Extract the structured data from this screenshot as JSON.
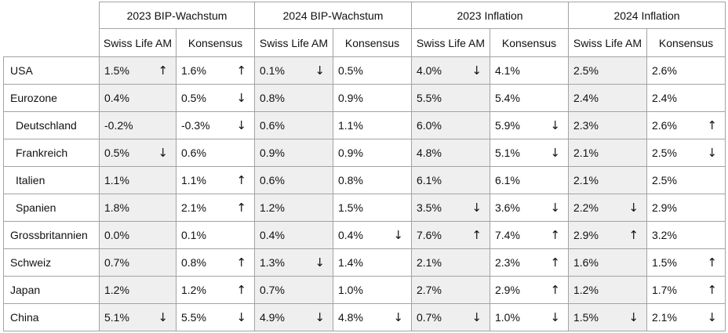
{
  "headers": {
    "groups": [
      "2023 BIP-Wachstum",
      "2024 BIP-Wachstum",
      "2023 Inflation",
      "2024 Inflation"
    ],
    "sub": [
      "Swiss Life AM",
      "Konsensus"
    ]
  },
  "rows": [
    {
      "label": "USA",
      "indent": false,
      "cells": [
        {
          "v": "1.5%",
          "a": "up"
        },
        {
          "v": "1.6%",
          "a": "up"
        },
        {
          "v": "0.1%",
          "a": "down"
        },
        {
          "v": "0.5%",
          "a": ""
        },
        {
          "v": "4.0%",
          "a": "down"
        },
        {
          "v": "4.1%",
          "a": ""
        },
        {
          "v": "2.5%",
          "a": ""
        },
        {
          "v": "2.6%",
          "a": ""
        }
      ]
    },
    {
      "label": "Eurozone",
      "indent": false,
      "cells": [
        {
          "v": "0.4%",
          "a": ""
        },
        {
          "v": "0.5%",
          "a": "down"
        },
        {
          "v": "0.8%",
          "a": ""
        },
        {
          "v": "0.9%",
          "a": ""
        },
        {
          "v": "5.5%",
          "a": ""
        },
        {
          "v": "5.4%",
          "a": ""
        },
        {
          "v": "2.4%",
          "a": ""
        },
        {
          "v": "2.4%",
          "a": ""
        }
      ]
    },
    {
      "label": "Deutschland",
      "indent": true,
      "cells": [
        {
          "v": "-0.2%",
          "a": ""
        },
        {
          "v": "-0.3%",
          "a": "down"
        },
        {
          "v": "0.6%",
          "a": ""
        },
        {
          "v": "1.1%",
          "a": ""
        },
        {
          "v": "6.0%",
          "a": ""
        },
        {
          "v": "5.9%",
          "a": "down"
        },
        {
          "v": "2.3%",
          "a": ""
        },
        {
          "v": "2.6%",
          "a": "up"
        }
      ]
    },
    {
      "label": "Frankreich",
      "indent": true,
      "cells": [
        {
          "v": "0.5%",
          "a": "down"
        },
        {
          "v": "0.6%",
          "a": ""
        },
        {
          "v": "0.9%",
          "a": ""
        },
        {
          "v": "0.9%",
          "a": ""
        },
        {
          "v": "4.8%",
          "a": ""
        },
        {
          "v": "5.1%",
          "a": "down"
        },
        {
          "v": "2.1%",
          "a": ""
        },
        {
          "v": "2.5%",
          "a": "down"
        }
      ]
    },
    {
      "label": "Italien",
      "indent": true,
      "cells": [
        {
          "v": "1.1%",
          "a": ""
        },
        {
          "v": "1.1%",
          "a": "up"
        },
        {
          "v": "0.6%",
          "a": ""
        },
        {
          "v": "0.8%",
          "a": ""
        },
        {
          "v": "6.1%",
          "a": ""
        },
        {
          "v": "6.1%",
          "a": ""
        },
        {
          "v": "2.1%",
          "a": ""
        },
        {
          "v": "2.5%",
          "a": ""
        }
      ]
    },
    {
      "label": "Spanien",
      "indent": true,
      "cells": [
        {
          "v": "1.8%",
          "a": ""
        },
        {
          "v": "2.1%",
          "a": "up"
        },
        {
          "v": "1.2%",
          "a": ""
        },
        {
          "v": "1.5%",
          "a": ""
        },
        {
          "v": "3.5%",
          "a": "down"
        },
        {
          "v": "3.6%",
          "a": "down"
        },
        {
          "v": "2.2%",
          "a": "down"
        },
        {
          "v": "2.9%",
          "a": ""
        }
      ]
    },
    {
      "label": "Grossbritannien",
      "indent": false,
      "cells": [
        {
          "v": "0.0%",
          "a": ""
        },
        {
          "v": "0.1%",
          "a": ""
        },
        {
          "v": "0.4%",
          "a": ""
        },
        {
          "v": "0.4%",
          "a": "down"
        },
        {
          "v": "7.6%",
          "a": "up"
        },
        {
          "v": "7.4%",
          "a": "up"
        },
        {
          "v": "2.9%",
          "a": "up"
        },
        {
          "v": "3.2%",
          "a": ""
        }
      ]
    },
    {
      "label": "Schweiz",
      "indent": false,
      "cells": [
        {
          "v": "0.7%",
          "a": ""
        },
        {
          "v": "0.8%",
          "a": "up"
        },
        {
          "v": "1.3%",
          "a": "down"
        },
        {
          "v": "1.4%",
          "a": ""
        },
        {
          "v": "2.1%",
          "a": ""
        },
        {
          "v": "2.3%",
          "a": "up"
        },
        {
          "v": "1.6%",
          "a": ""
        },
        {
          "v": "1.5%",
          "a": "up"
        }
      ]
    },
    {
      "label": "Japan",
      "indent": false,
      "cells": [
        {
          "v": "1.2%",
          "a": ""
        },
        {
          "v": "1.2%",
          "a": "up"
        },
        {
          "v": "0.7%",
          "a": ""
        },
        {
          "v": "1.0%",
          "a": ""
        },
        {
          "v": "2.7%",
          "a": ""
        },
        {
          "v": "2.9%",
          "a": "up"
        },
        {
          "v": "1.2%",
          "a": ""
        },
        {
          "v": "1.7%",
          "a": "up"
        }
      ]
    },
    {
      "label": "China",
      "indent": false,
      "cells": [
        {
          "v": "5.1%",
          "a": "down"
        },
        {
          "v": "5.5%",
          "a": "down"
        },
        {
          "v": "4.9%",
          "a": "down"
        },
        {
          "v": "4.8%",
          "a": "down"
        },
        {
          "v": "0.7%",
          "a": "down"
        },
        {
          "v": "1.0%",
          "a": "down"
        },
        {
          "v": "1.5%",
          "a": "down"
        },
        {
          "v": "2.1%",
          "a": "down"
        }
      ]
    }
  ],
  "arrows": {
    "up": "↑",
    "down": "↓"
  },
  "colors": {
    "swiss_life_fill": "#efefef",
    "konsensus_fill": "#ffffff",
    "border": "#a3a3a3"
  }
}
